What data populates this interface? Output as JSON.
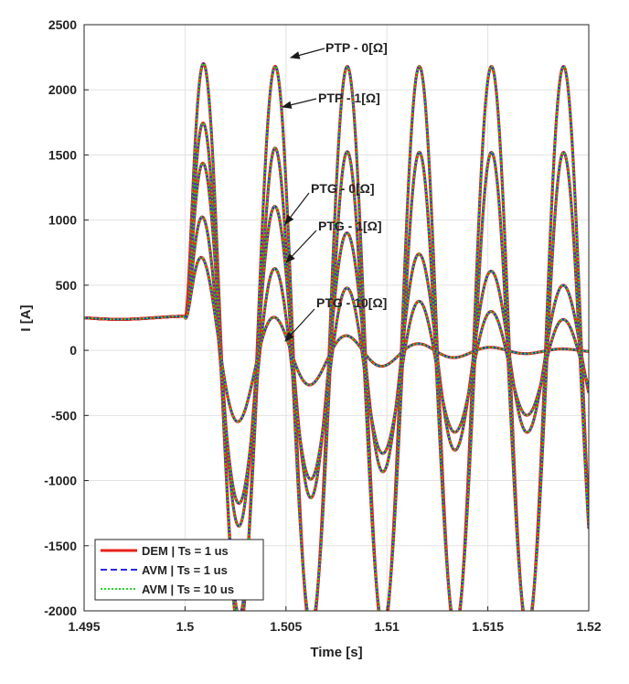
{
  "chart_data": {
    "type": "line",
    "title": "",
    "xlabel": "Time [s]",
    "ylabel": "I [A]",
    "xlim": [
      1.495,
      1.52
    ],
    "ylim": [
      -2000,
      2500
    ],
    "grid": true,
    "legend_position": "bottom-left",
    "x_ticks": [
      1.495,
      1.5,
      1.505,
      1.51,
      1.515,
      1.52
    ],
    "x_tick_labels": [
      "1.495",
      "1.5",
      "1.505",
      "1.51",
      "1.515",
      "1.52"
    ],
    "y_ticks": [
      -2000,
      -1500,
      -1000,
      -500,
      0,
      500,
      1000,
      1500,
      2000,
      2500
    ],
    "y_tick_labels": [
      "-2000",
      "-1500",
      "-1000",
      "-500",
      "0",
      "500",
      "1000",
      "1500",
      "2000",
      "2500"
    ],
    "fault_time": 1.5,
    "prefault_current": 250,
    "series": [
      {
        "name": "DEM | Ts = 1 us",
        "color": "#e8211b",
        "dash": "solid"
      },
      {
        "name": "AVM | Ts = 1 us",
        "color": "#2a2ae0",
        "dash": "dashed"
      },
      {
        "name": "AVM | Ts = 10 us",
        "color": "#22d322",
        "dash": "dotted"
      }
    ],
    "cases": [
      {
        "label": "PTP - 0[Ω]",
        "amplitude": 2180,
        "decay": 0,
        "offset": 0,
        "annotation_at": [
          1.505,
          2230
        ]
      },
      {
        "label": "PTP - 1[Ω]",
        "amplitude": 1820,
        "decay": 0,
        "offset": -300,
        "annotation_at": [
          1.5048,
          1840
        ]
      },
      {
        "label": "PTG - 0[Ω]",
        "amplitude": 1500,
        "decay": 55,
        "offset": -100,
        "annotation_at": [
          1.5047,
          930
        ]
      },
      {
        "label": "PTG - 1[Ω]",
        "amplitude": 1150,
        "decay": 65,
        "offset": -350,
        "annotation_at": [
          1.5045,
          640
        ]
      },
      {
        "label": "PTG - 10[Ω]",
        "amplitude": 850,
        "decay": 220,
        "offset": -200,
        "annotation_at": [
          1.5045,
          70
        ]
      }
    ],
    "annotations": [
      {
        "text": "PTP - 0[Ω]"
      },
      {
        "text": "PTP - 1[Ω]"
      },
      {
        "text": "PTG - 0[Ω]"
      },
      {
        "text": "PTG - 1[Ω]"
      },
      {
        "text": "PTG - 10[Ω]"
      }
    ]
  }
}
